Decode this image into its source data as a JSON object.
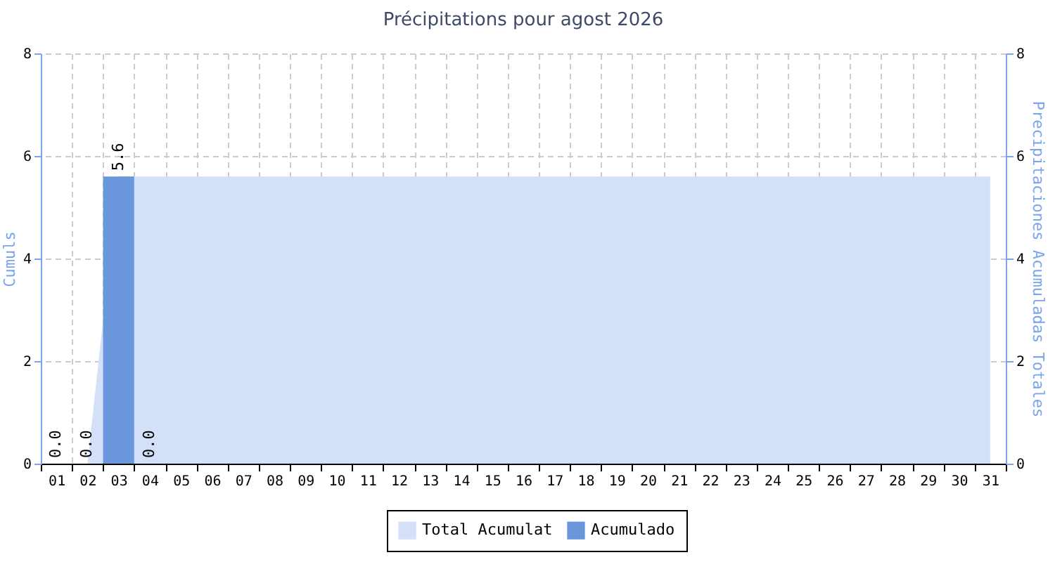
{
  "chart_data": {
    "type": "bar",
    "title": "Précipitations pour agost 2026",
    "ylabel": "Cumuls",
    "y2label": "Precipitaciones Acumuladas Totales",
    "categories": [
      "01",
      "02",
      "03",
      "04",
      "05",
      "06",
      "07",
      "08",
      "09",
      "10",
      "11",
      "12",
      "13",
      "14",
      "15",
      "16",
      "17",
      "18",
      "19",
      "20",
      "21",
      "22",
      "23",
      "24",
      "25",
      "26",
      "27",
      "28",
      "29",
      "30",
      "31"
    ],
    "series": [
      {
        "name": "Total Acumulat",
        "type": "area",
        "axis": "y2",
        "color": "#d3e0f8",
        "values": [
          0,
          0,
          5.6,
          5.6,
          5.6,
          5.6,
          5.6,
          5.6,
          5.6,
          5.6,
          5.6,
          5.6,
          5.6,
          5.6,
          5.6,
          5.6,
          5.6,
          5.6,
          5.6,
          5.6,
          5.6,
          5.6,
          5.6,
          5.6,
          5.6,
          5.6,
          5.6,
          5.6,
          5.6,
          5.6,
          5.6
        ]
      },
      {
        "name": "Acumulado",
        "color": "#6a96dc",
        "values": [
          0.0,
          0.0,
          5.6,
          0.0,
          null,
          null,
          null,
          null,
          null,
          null,
          null,
          null,
          null,
          null,
          null,
          null,
          null,
          null,
          null,
          null,
          null,
          null,
          null,
          null,
          null,
          null,
          null,
          null,
          null,
          null,
          null
        ],
        "value_labels": [
          "0.0",
          "0.0",
          "5.6",
          "0.0",
          null,
          null,
          null,
          null,
          null,
          null,
          null,
          null,
          null,
          null,
          null,
          null,
          null,
          null,
          null,
          null,
          null,
          null,
          null,
          null,
          null,
          null,
          null,
          null,
          null,
          null,
          null
        ]
      }
    ],
    "ylim": [
      0,
      8
    ],
    "yticks": [
      0,
      2,
      4,
      6,
      8
    ],
    "y2lim": [
      0,
      8
    ],
    "y2ticks": [
      0,
      2,
      4,
      6,
      8
    ],
    "grid": true,
    "legend": "bottom"
  }
}
